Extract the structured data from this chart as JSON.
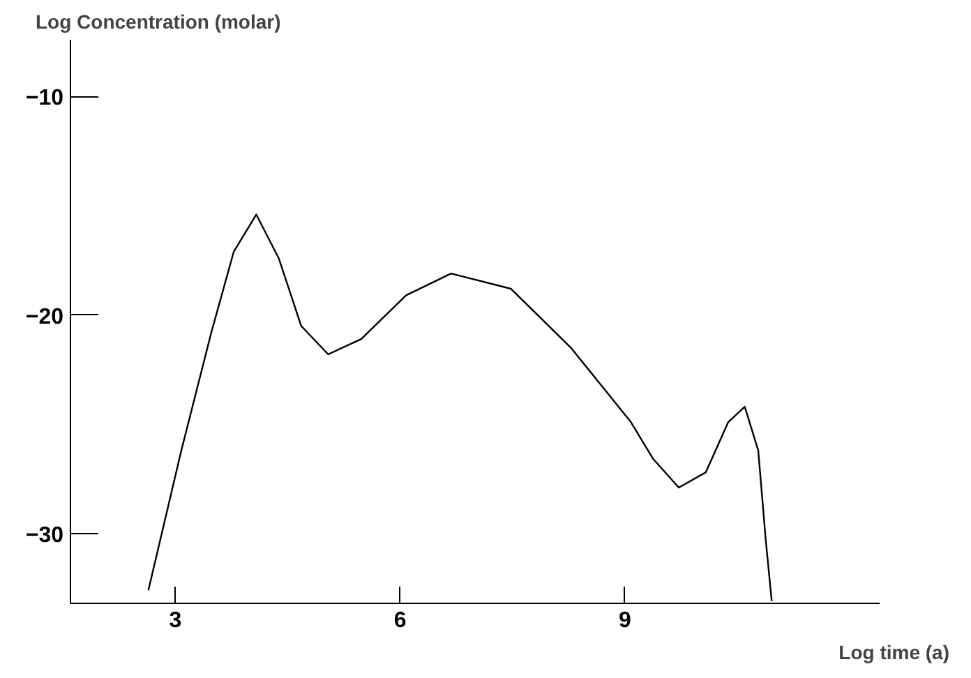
{
  "chart_data": {
    "type": "line",
    "xlabel": "Log time (a)",
    "ylabel": "Log Concentration (molar)",
    "x": [
      2.64,
      3.08,
      3.48,
      3.78,
      4.08,
      4.38,
      4.68,
      5.04,
      5.48,
      6.08,
      6.68,
      7.48,
      8.28,
      9.08,
      9.38,
      9.72,
      10.08,
      10.38,
      10.6,
      10.78,
      10.88,
      10.96
    ],
    "series": [
      {
        "color": "#000000",
        "values": [
          -32.6,
          -26.2,
          -20.8,
          -17.1,
          -15.4,
          -17.4,
          -20.5,
          -21.8,
          -21.1,
          -19.1,
          -18.1,
          -18.8,
          -21.5,
          -24.9,
          -26.6,
          -27.9,
          -27.2,
          -24.9,
          -24.2,
          -26.2,
          -30.3,
          -33.1
        ]
      }
    ],
    "xlim": [
      1.6,
      12.4
    ],
    "ylim": [
      -33.2,
      -7.4
    ],
    "xticks": [
      3,
      6,
      9
    ],
    "yticks": [
      -10,
      -20,
      -30
    ],
    "grid": false,
    "marker": "none",
    "line_style": "solid"
  }
}
